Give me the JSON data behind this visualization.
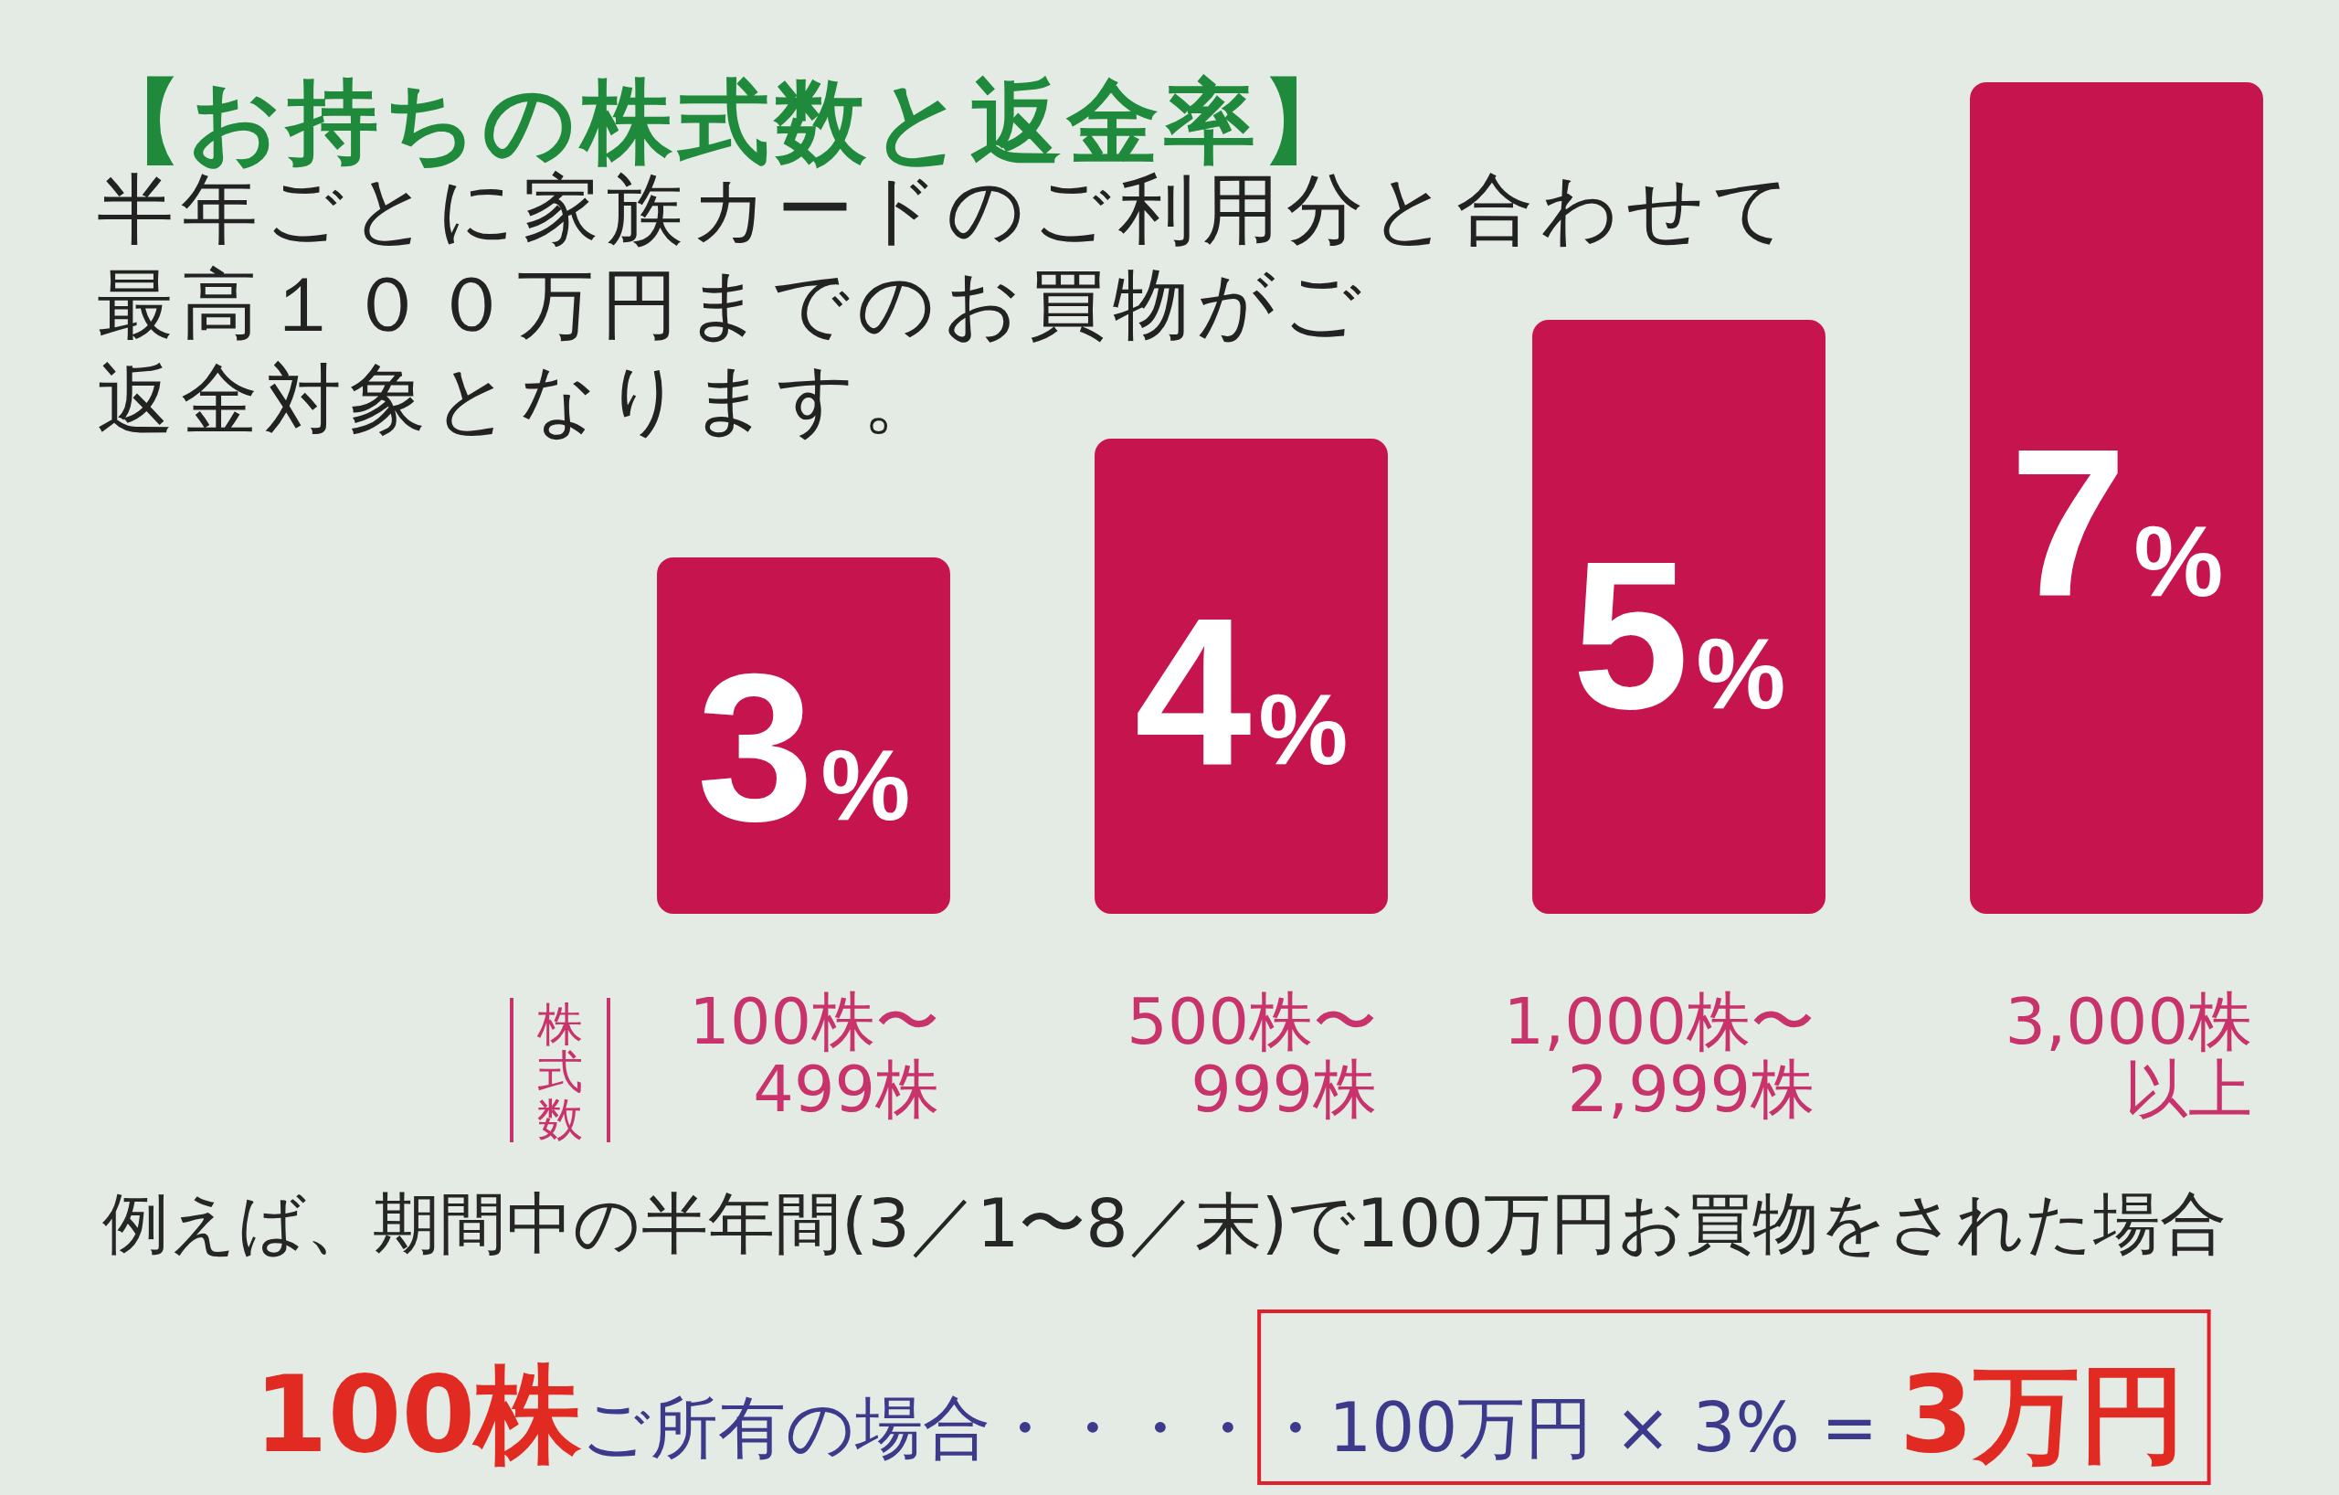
{
  "chart_data": {
    "type": "bar",
    "title": "【お持ちの株式数と返金率】",
    "subtitle": "半年ごとに家族カードのご利用分と合わせて最高１００万円までのお買物がご返金対象となります。",
    "xlabel": "株式数",
    "categories": [
      "100株〜499株",
      "500株〜999株",
      "1,000株〜2,999株",
      "3,000株以上"
    ],
    "values": [
      3,
      4,
      5,
      7
    ],
    "value_labels": [
      "3%",
      "4%",
      "5%",
      "7%"
    ],
    "color": "#c5144e",
    "annotations": [
      "例えば、期間中の半年間(3／1〜8／末)で100万円お買物をされた場合",
      "**100株**ご所有の場合・・・・・100万円 × 3% = **3万円**"
    ]
  }
}
